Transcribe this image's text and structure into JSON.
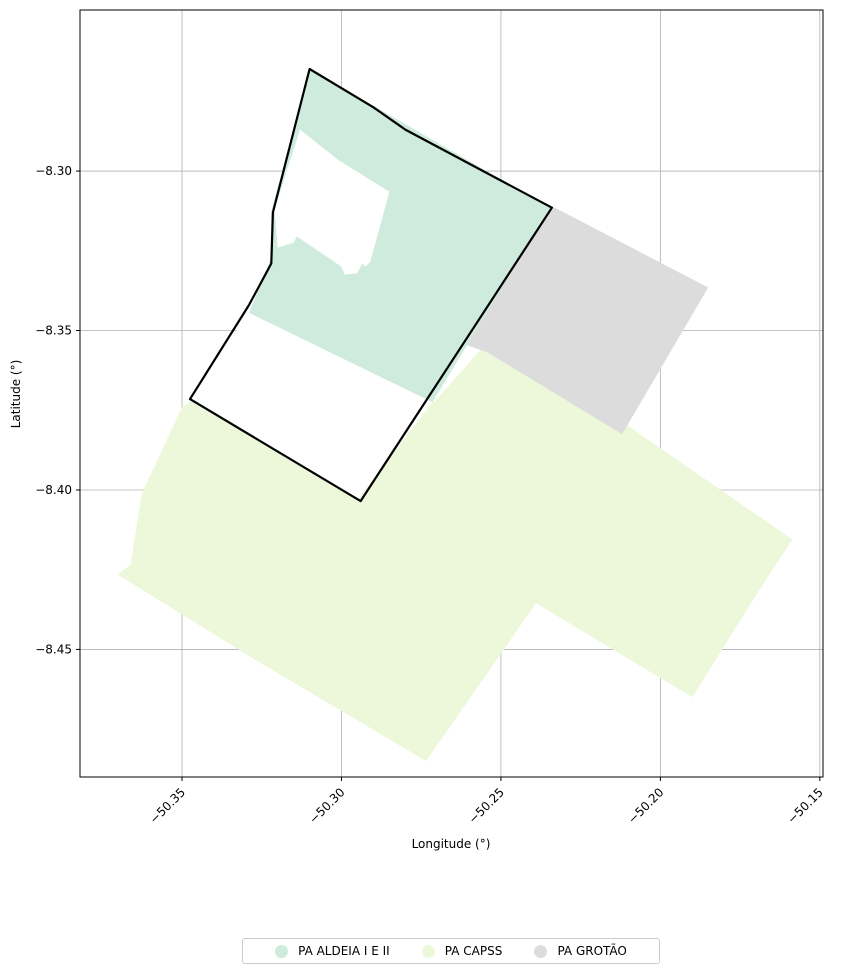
{
  "chart_data": {
    "type": "map",
    "xlabel": "Longitude (°)",
    "ylabel": "Latitude (°)",
    "xlim": [
      -50.382,
      -50.149
    ],
    "ylim": [
      -8.49,
      -8.2495
    ],
    "xticks": [
      {
        "value": -50.35,
        "label": "−50.35"
      },
      {
        "value": -50.3,
        "label": "−50.30"
      },
      {
        "value": -50.25,
        "label": "−50.25"
      },
      {
        "value": -50.2,
        "label": "−50.20"
      },
      {
        "value": -50.15,
        "label": "−50.15"
      }
    ],
    "yticks": [
      {
        "value": -8.3,
        "label": "−8.30"
      },
      {
        "value": -8.35,
        "label": "−8.35"
      },
      {
        "value": -8.4,
        "label": "−8.40"
      },
      {
        "value": -8.45,
        "label": "−8.45"
      }
    ],
    "grid": true,
    "legend_position": "bottom-center",
    "areas": [
      {
        "name": "PA CAPSS",
        "color": "#edf8da",
        "polygon": [
          [
            -50.3703,
            -8.4265
          ],
          [
            -50.3662,
            -8.4235
          ],
          [
            -50.3626,
            -8.401
          ],
          [
            -50.35,
            -8.374
          ],
          [
            -50.324,
            -8.357
          ],
          [
            -50.271,
            -8.3725
          ],
          [
            -50.252,
            -8.351
          ],
          [
            -50.1586,
            -8.4155
          ],
          [
            -50.17,
            -8.433
          ],
          [
            -50.19,
            -8.465
          ],
          [
            -50.239,
            -8.4355
          ],
          [
            -50.2735,
            -8.485
          ],
          [
            -50.325,
            -8.4545
          ]
        ]
      },
      {
        "name": "PA GROTÃO",
        "color": "#dcdcdc",
        "polygon": [
          [
            -50.236,
            -8.31
          ],
          [
            -50.185,
            -8.3365
          ],
          [
            -50.212,
            -8.3825
          ],
          [
            -50.254,
            -8.357
          ],
          [
            -50.268,
            -8.352
          ]
        ]
      },
      {
        "name": "PA ALDEIA I E II",
        "color": "#ceebde",
        "polygon": [
          [
            -50.31,
            -8.268
          ],
          [
            -50.2345,
            -8.3115
          ],
          [
            -50.2715,
            -8.3725
          ],
          [
            -50.329,
            -8.3445
          ],
          [
            -50.322,
            -8.327
          ],
          [
            -50.322,
            -8.3125
          ],
          [
            -50.3105,
            -8.2695
          ]
        ]
      }
    ],
    "holes": [
      {
        "polygon": [
          [
            -50.313,
            -8.287
          ],
          [
            -50.301,
            -8.2965
          ],
          [
            -50.285,
            -8.3065
          ],
          [
            -50.287,
            -8.314
          ],
          [
            -50.291,
            -8.3285
          ],
          [
            -50.2925,
            -8.33
          ],
          [
            -50.2935,
            -8.329
          ],
          [
            -50.295,
            -8.332
          ],
          [
            -50.299,
            -8.3325
          ],
          [
            -50.3,
            -8.33
          ],
          [
            -50.314,
            -8.3205
          ],
          [
            -50.315,
            -8.3225
          ],
          [
            -50.32,
            -8.324
          ],
          [
            -50.321,
            -8.312
          ]
        ]
      },
      {
        "polygon": [
          [
            -50.329,
            -8.3445
          ],
          [
            -50.348,
            -8.3715
          ],
          [
            -50.295,
            -8.403
          ],
          [
            -50.2715,
            -8.3725
          ]
        ]
      }
    ],
    "outline": {
      "stroke": "#000000",
      "polygon": [
        [
          -50.31,
          -8.268
        ],
        [
          -50.29,
          -8.28
        ],
        [
          -50.28,
          -8.287
        ],
        [
          -50.234,
          -8.3115
        ],
        [
          -50.294,
          -8.4035
        ],
        [
          -50.3475,
          -8.3715
        ],
        [
          -50.329,
          -8.342
        ],
        [
          -50.322,
          -8.329
        ],
        [
          -50.3215,
          -8.313
        ],
        [
          -50.31,
          -8.268
        ]
      ]
    },
    "legend": [
      {
        "name": "PA ALDEIA I E II",
        "color": "#ceebde"
      },
      {
        "name": "PA CAPSS",
        "color": "#edf8da"
      },
      {
        "name": "PA GROTÃO",
        "color": "#dcdcdc"
      }
    ]
  }
}
